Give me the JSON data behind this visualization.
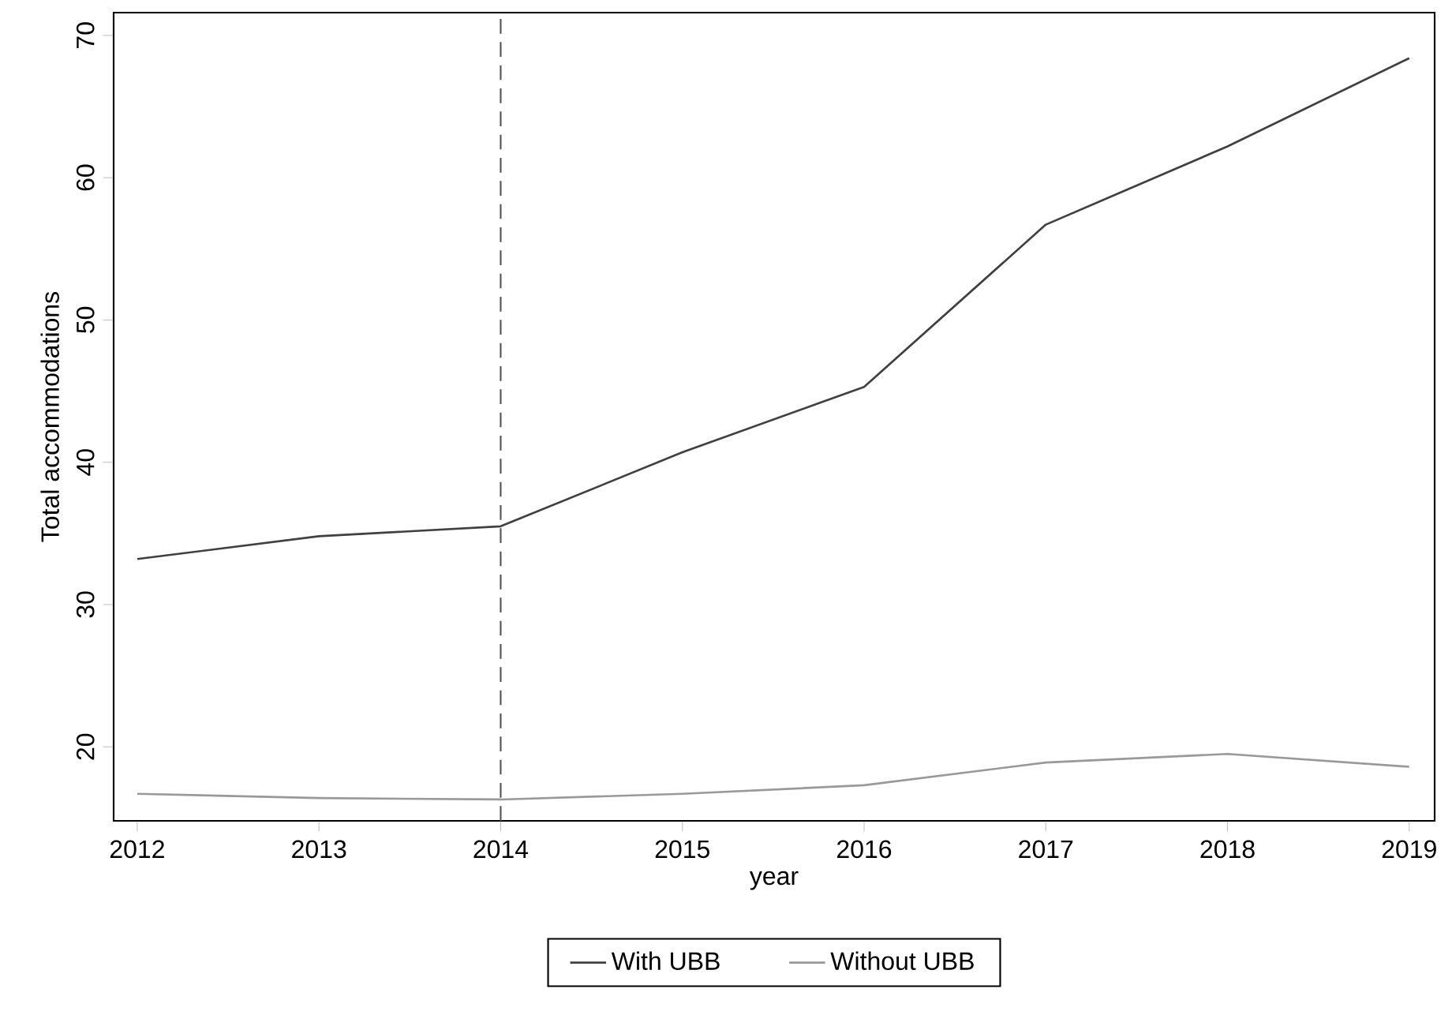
{
  "chart_data": {
    "type": "line",
    "xlabel": "year",
    "ylabel": "Total accommodations",
    "x": [
      2012,
      2013,
      2014,
      2015,
      2016,
      2017,
      2018,
      2019
    ],
    "series": [
      {
        "name": "With UBB",
        "color": "#404040",
        "values": [
          33.2,
          34.8,
          35.5,
          40.7,
          45.3,
          56.7,
          62.2,
          68.4
        ]
      },
      {
        "name": "Without UBB",
        "color": "#999999",
        "values": [
          16.7,
          16.4,
          16.3,
          16.7,
          17.3,
          18.9,
          19.5,
          18.6
        ]
      }
    ],
    "xlim": [
      2011.87,
      2019.14
    ],
    "ylim": [
      14.8,
      71.6
    ],
    "xticks": [
      2012,
      2013,
      2014,
      2015,
      2016,
      2017,
      2018,
      2019
    ],
    "yticks": [
      20,
      30,
      40,
      50,
      60,
      70
    ],
    "ref_lines": [
      {
        "axis": "x",
        "value": 2014,
        "color": "#555555",
        "line_style": "dashed"
      }
    ],
    "grid": false,
    "legend": "bottom",
    "marker": "none",
    "line_style": "solid"
  }
}
